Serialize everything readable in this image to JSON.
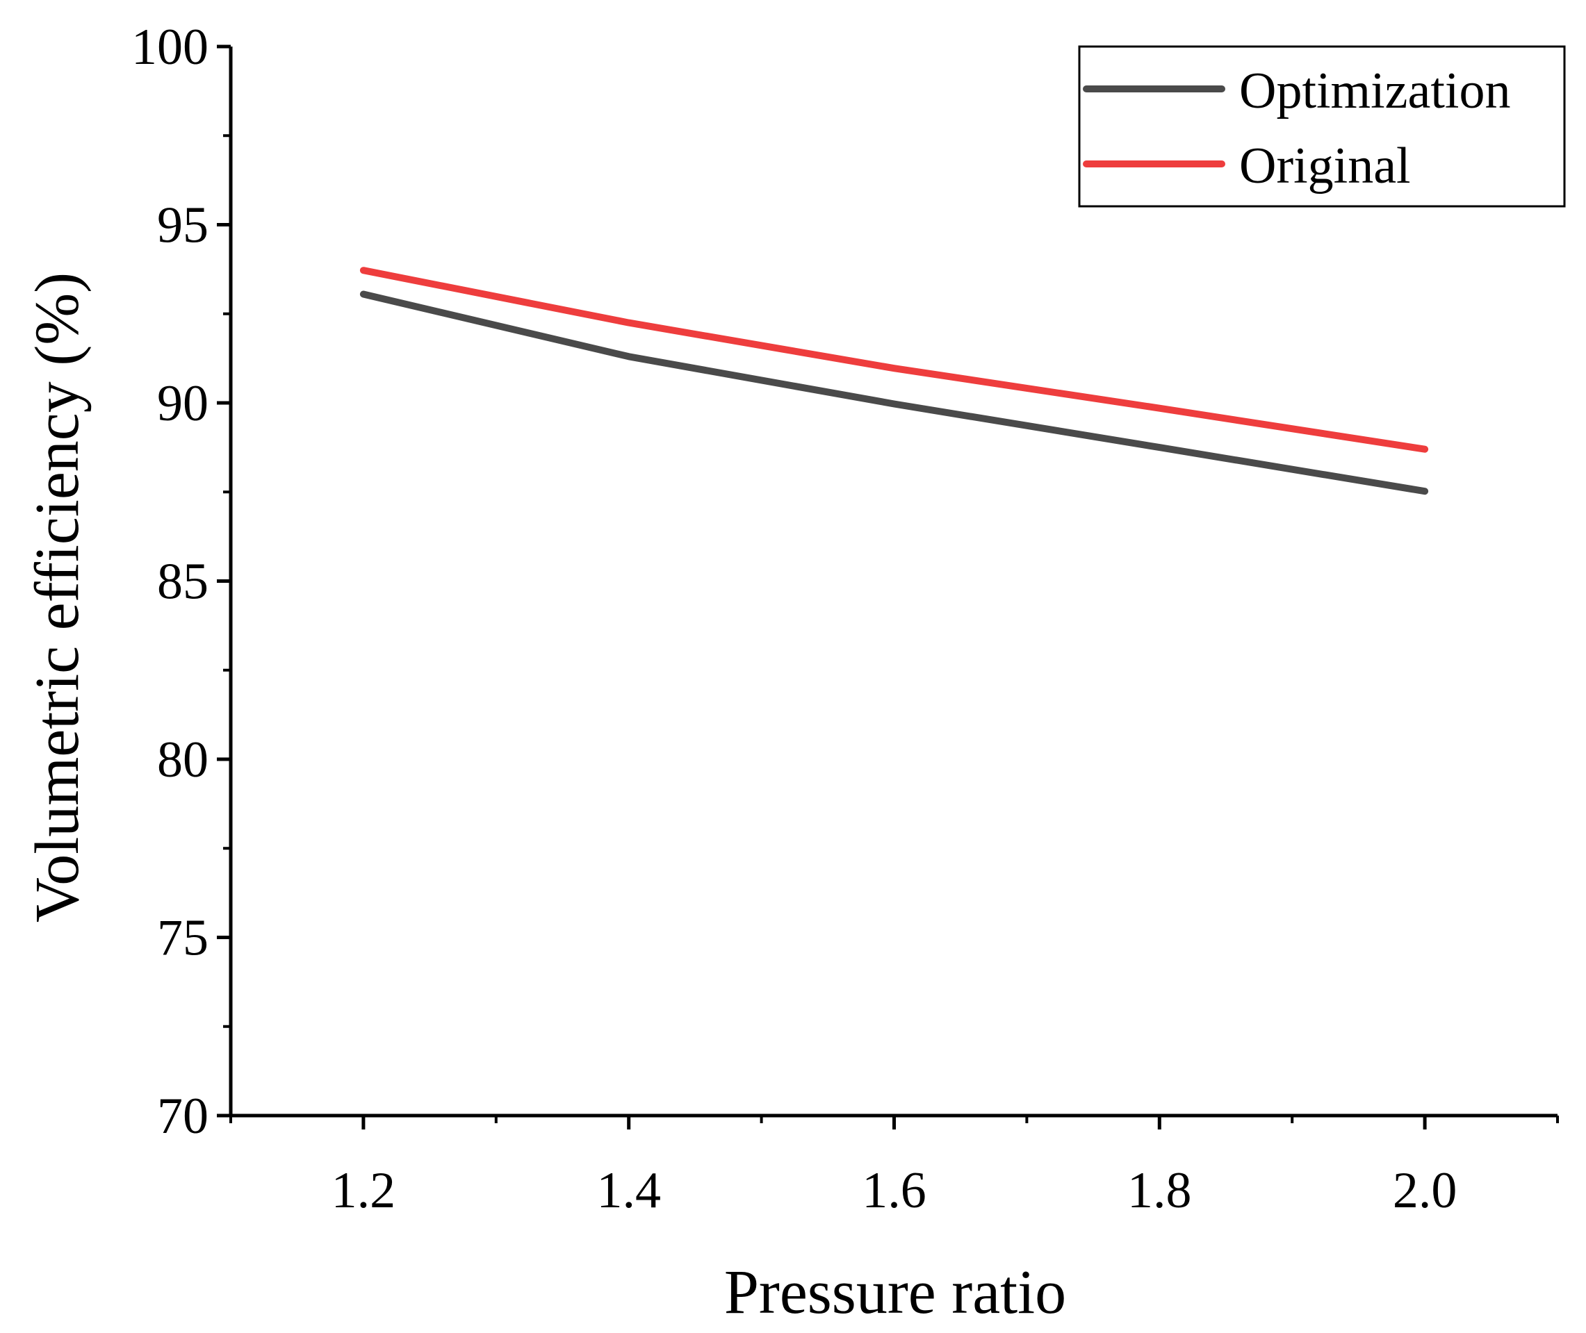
{
  "chart_data": {
    "type": "line",
    "xlabel": "Pressure ratio",
    "ylabel": "Volumetric efficiency (%)",
    "xlim": [
      1.1,
      2.1
    ],
    "ylim": [
      70,
      100
    ],
    "x_ticks": [
      1.2,
      1.4,
      1.6,
      1.8,
      2.0
    ],
    "x_tick_labels": [
      "1.2",
      "1.4",
      "1.6",
      "1.8",
      "2.0"
    ],
    "x_minor_ticks": [
      1.1,
      1.3,
      1.5,
      1.7,
      1.9,
      2.1
    ],
    "y_ticks": [
      70,
      75,
      80,
      85,
      90,
      95,
      100
    ],
    "y_tick_labels": [
      "70",
      "75",
      "80",
      "85",
      "90",
      "95",
      "100"
    ],
    "y_minor_ticks": [
      72.5,
      77.5,
      82.5,
      87.5,
      92.5,
      97.5
    ],
    "grid": false,
    "legend_position": "top-right",
    "x": [
      1.2,
      1.4,
      1.6,
      1.8,
      2.0
    ],
    "series": [
      {
        "name": "Optimization",
        "color": "#4a4a4a",
        "values": [
          93.05,
          91.3,
          89.97,
          88.75,
          87.52
        ]
      },
      {
        "name": "Original",
        "color": "#ee3d3d",
        "values": [
          93.72,
          92.25,
          90.97,
          89.85,
          88.7
        ]
      }
    ]
  }
}
